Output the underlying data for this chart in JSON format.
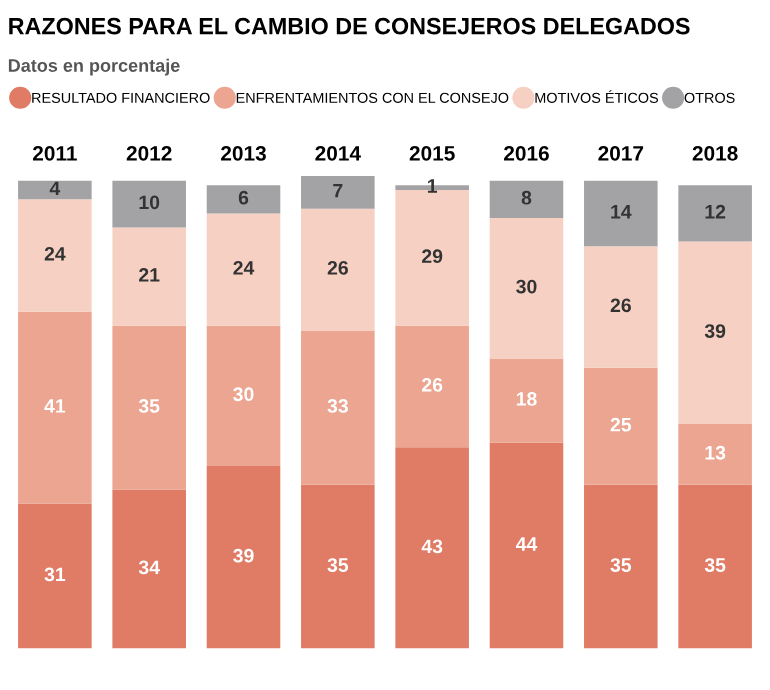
{
  "chart_data": {
    "type": "bar",
    "title": "RAZONES PARA EL CAMBIO DE CONSEJEROS DELEGADOS",
    "subtitle": "Datos en porcentaje",
    "categories": [
      "2011",
      "2012",
      "2013",
      "2014",
      "2015",
      "2016",
      "2017",
      "2018"
    ],
    "stacked": true,
    "data_labels": true,
    "legend": "top",
    "grid": false,
    "tick_labels": "x",
    "series": [
      {
        "name": "RESULTADO FINANCIERO",
        "color": "#e07c66",
        "values": [
          31,
          34,
          39,
          35,
          43,
          44,
          35,
          35
        ]
      },
      {
        "name": "ENFRENTAMIENTOS CON EL CONSEJO",
        "color": "#eba590",
        "values": [
          41,
          35,
          30,
          33,
          26,
          18,
          25,
          13
        ]
      },
      {
        "name": "MOTIVOS ÉTICOS",
        "color": "#f6d0c2",
        "values": [
          24,
          21,
          24,
          26,
          29,
          30,
          26,
          39
        ]
      },
      {
        "name": "OTROS",
        "color": "#a3a3a5",
        "values": [
          4,
          10,
          6,
          7,
          1,
          8,
          14,
          12
        ]
      }
    ]
  }
}
